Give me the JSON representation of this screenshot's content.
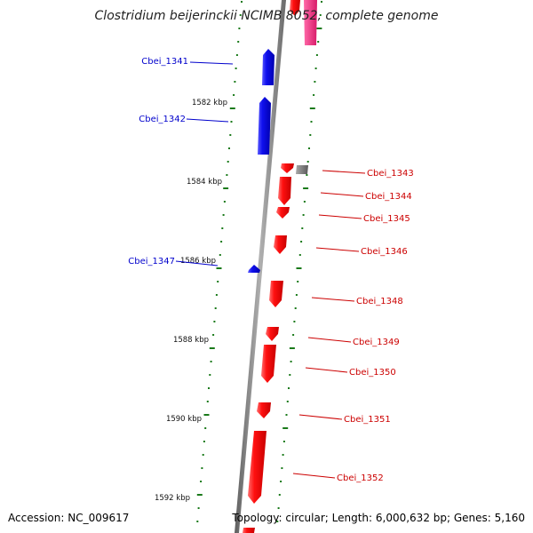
{
  "title": "Clostridium beijerinckii NCIMB 8052, complete genome",
  "accession_text": "Accession: NC_009617",
  "summary_text": "Topology: circular; Length: 6,000,632 bp; Genes: 5,160",
  "colors": {
    "backbone": "#808080",
    "tick": "#1a7a1a",
    "forward_gene": "#e80000",
    "reverse_gene": "#0a0ad8",
    "other_feature": "#7a7a7a",
    "rna_feature": "#e8307a",
    "forward_label": "#cc0000",
    "reverse_label": "#0000cc"
  },
  "kbp_labels": [
    {
      "text": "1582 kbp"
    },
    {
      "text": "1584 kbp"
    },
    {
      "text": "1586 kbp"
    },
    {
      "text": "1588 kbp"
    },
    {
      "text": "1590 kbp"
    },
    {
      "text": "1592 kbp"
    }
  ],
  "genes": [
    {
      "name": "Cbei_1341",
      "strand": "reverse"
    },
    {
      "name": "Cbei_1342",
      "strand": "reverse"
    },
    {
      "name": "Cbei_1343",
      "strand": "forward"
    },
    {
      "name": "Cbei_1344",
      "strand": "forward"
    },
    {
      "name": "Cbei_1345",
      "strand": "forward"
    },
    {
      "name": "Cbei_1346",
      "strand": "forward"
    },
    {
      "name": "Cbei_1347",
      "strand": "reverse"
    },
    {
      "name": "Cbei_1348",
      "strand": "forward"
    },
    {
      "name": "Cbei_1349",
      "strand": "forward"
    },
    {
      "name": "Cbei_1350",
      "strand": "forward"
    },
    {
      "name": "Cbei_1351",
      "strand": "forward"
    },
    {
      "name": "Cbei_1352",
      "strand": "forward"
    }
  ]
}
